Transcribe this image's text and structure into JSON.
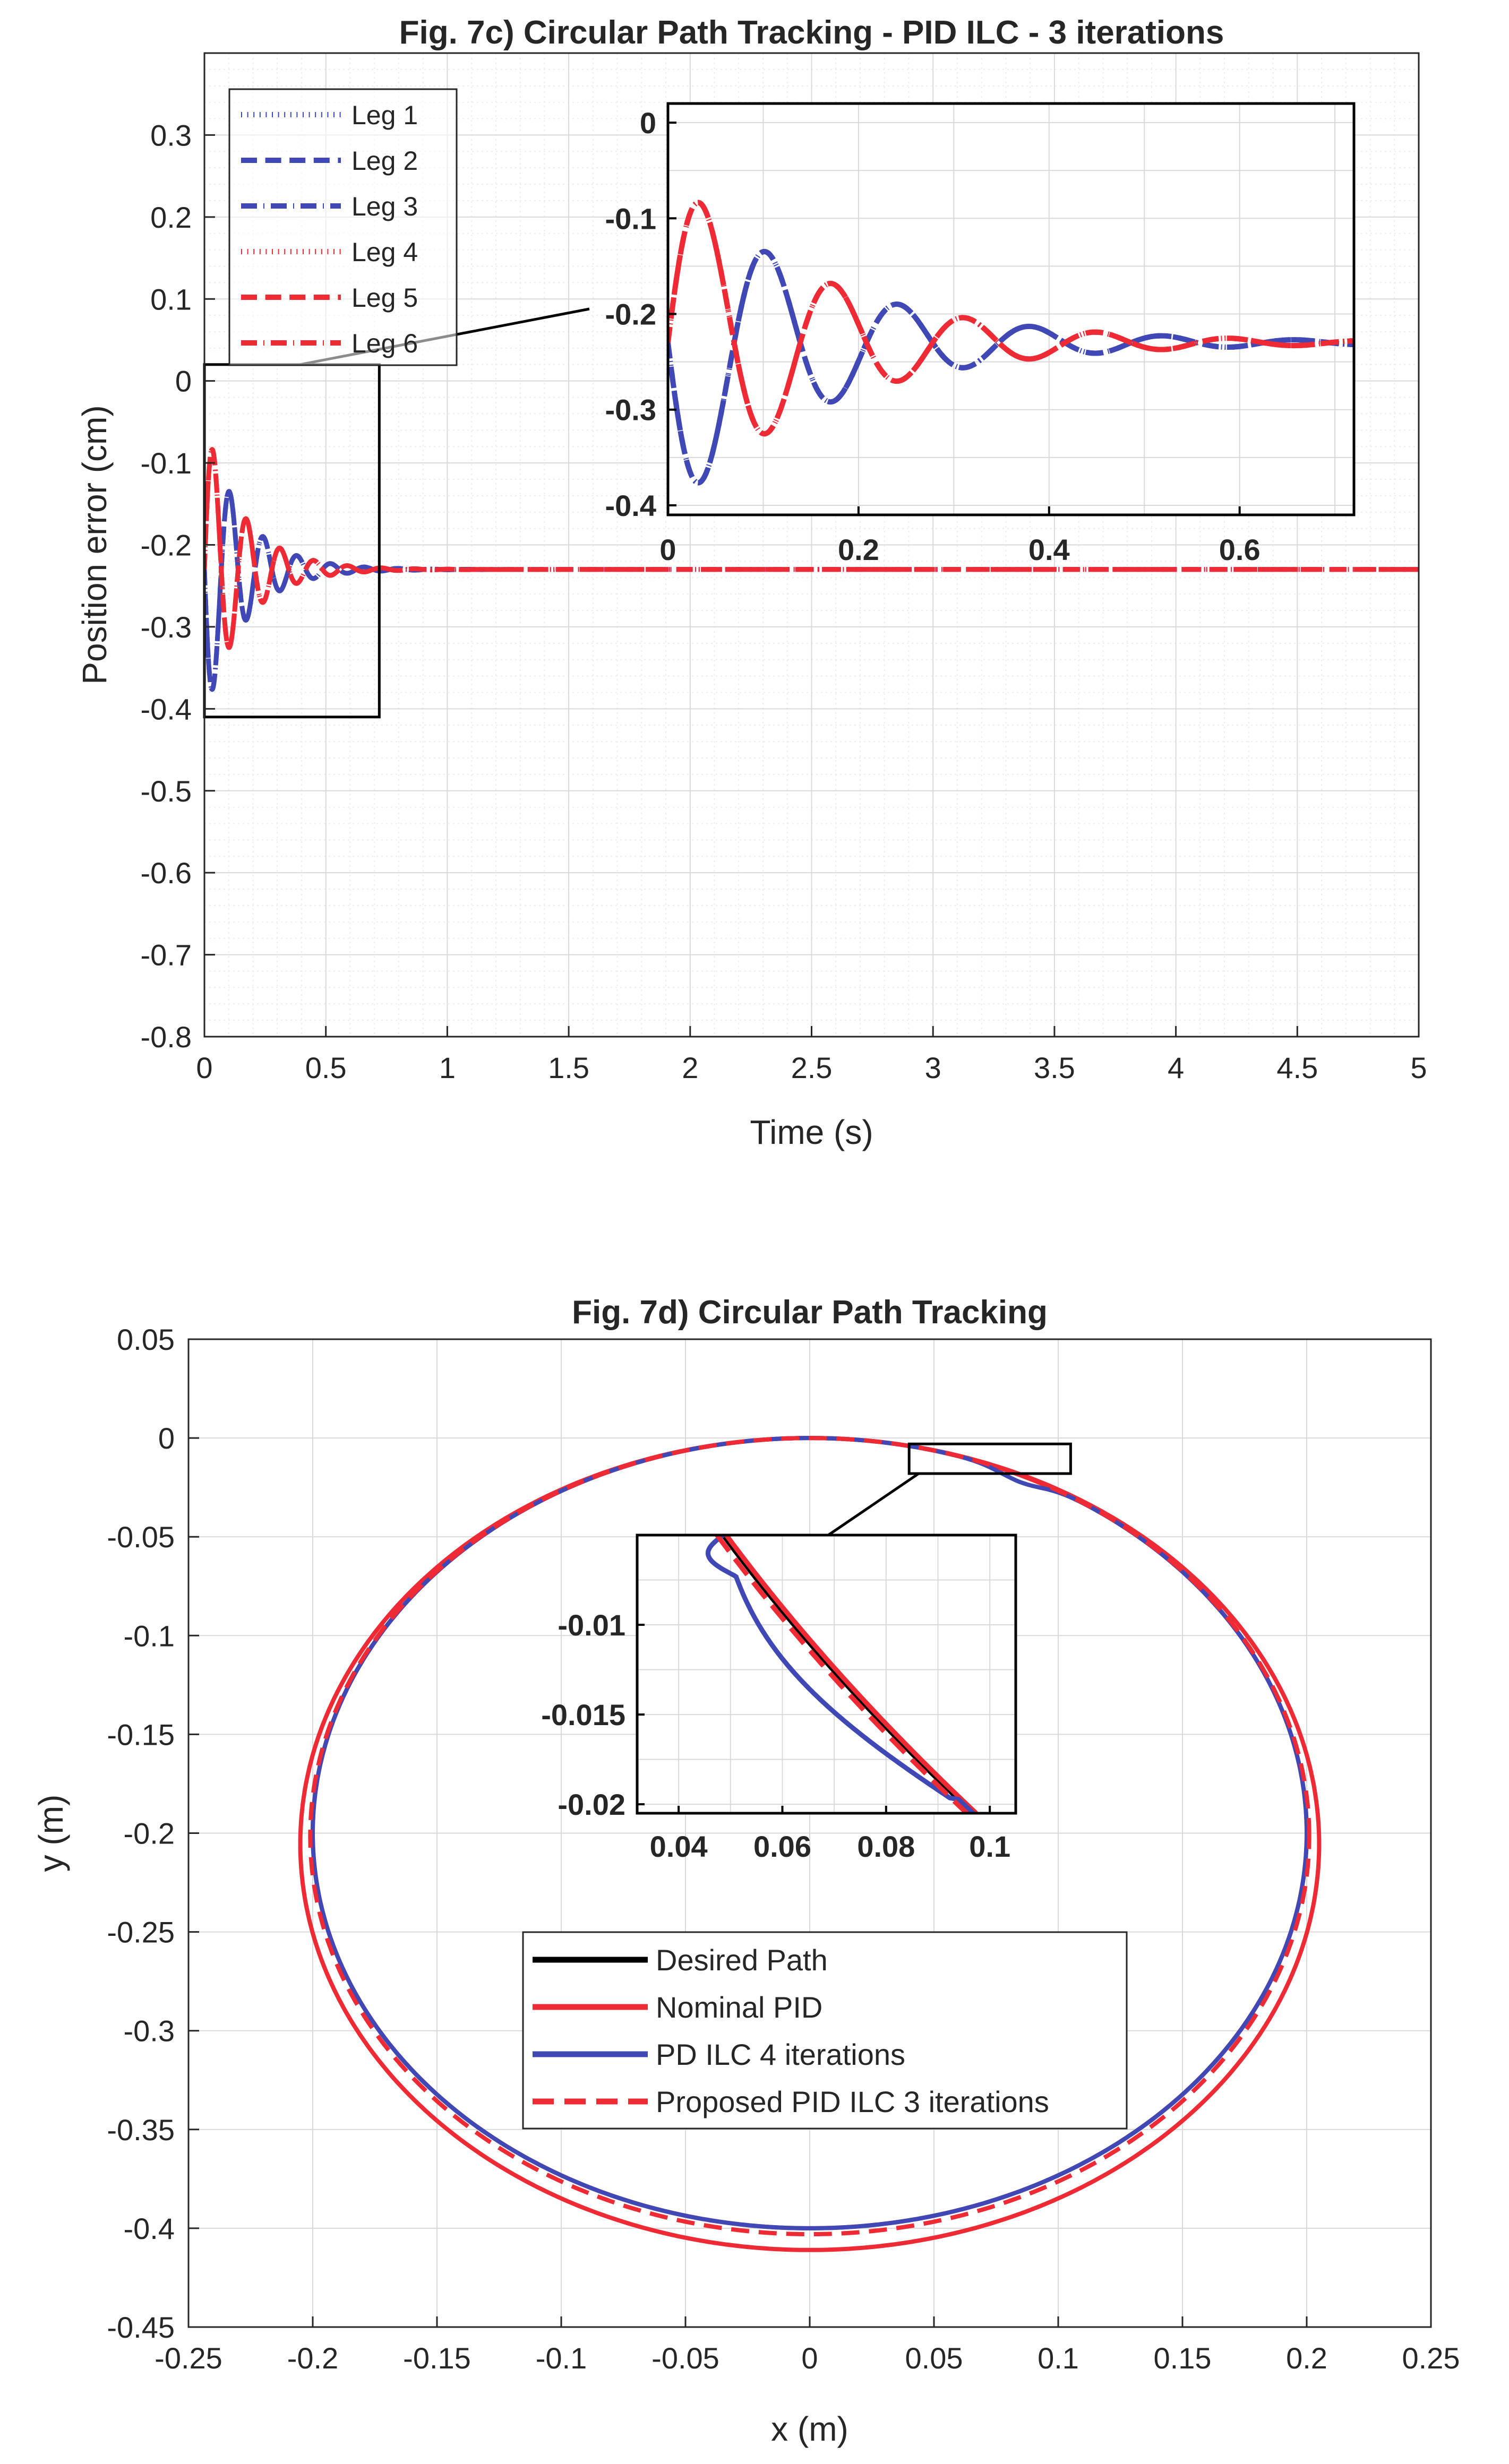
{
  "colors": {
    "blue": "#3F48B5",
    "red": "#EE2A35",
    "black": "#000000",
    "grid_major": "#d9d9d9",
    "grid_minor": "#ececec"
  },
  "chart_data": [
    {
      "type": "line",
      "title": "Fig. 7c) Circular Path Tracking - PID ILC - 3 iterations",
      "xlabel": "Time (s)",
      "ylabel": "Position error (cm)",
      "xlim": [
        0,
        5
      ],
      "ylim": [
        -0.8,
        0.4
      ],
      "xticks": [
        "0",
        "0.5",
        "1",
        "1.5",
        "2",
        "2.5",
        "3",
        "3.5",
        "4",
        "4.5",
        "5"
      ],
      "yticks": [
        "0.3",
        "0.2",
        "0.1",
        "0",
        "-0.1",
        "-0.2",
        "-0.3",
        "-0.4",
        "-0.5",
        "-0.6",
        "-0.7",
        "-0.8"
      ],
      "grid": "on (major and minor)",
      "legend_position": "top-left",
      "steady_state_error": -0.23,
      "series": [
        {
          "name": "Leg 1",
          "color": "blue",
          "style": "dotted",
          "model": {
            "amplitude": 0.18,
            "frequency_hz": 7.2,
            "decay_rate": 6.2,
            "offset": -0.23,
            "phase_deg": 90
          }
        },
        {
          "name": "Leg 2",
          "color": "blue",
          "style": "dashed",
          "model": {
            "amplitude": 0.18,
            "frequency_hz": 7.2,
            "decay_rate": 6.2,
            "offset": -0.23,
            "phase_deg": 90
          }
        },
        {
          "name": "Leg 3",
          "color": "blue",
          "style": "dash-dot",
          "model": {
            "amplitude": 0.18,
            "frequency_hz": 7.2,
            "decay_rate": 6.2,
            "offset": -0.23,
            "phase_deg": 90
          }
        },
        {
          "name": "Leg 4",
          "color": "red",
          "style": "dotted",
          "model": {
            "amplitude": 0.18,
            "frequency_hz": 7.2,
            "decay_rate": 6.2,
            "offset": -0.23,
            "phase_deg": -90
          }
        },
        {
          "name": "Leg 5",
          "color": "red",
          "style": "dashed",
          "model": {
            "amplitude": 0.18,
            "frequency_hz": 7.2,
            "decay_rate": 6.2,
            "offset": -0.23,
            "phase_deg": -90
          }
        },
        {
          "name": "Leg 6",
          "color": "red",
          "style": "dash-dot",
          "model": {
            "amplitude": 0.18,
            "frequency_hz": 7.2,
            "decay_rate": 6.2,
            "offset": -0.23,
            "phase_deg": -90
          }
        }
      ],
      "inset": {
        "xlim": [
          0,
          0.72
        ],
        "ylim": [
          -0.41,
          0.02
        ],
        "xticks": [
          "0",
          "0.2",
          "0.4",
          "0.6"
        ],
        "yticks": [
          "0",
          "-0.1",
          "-0.2",
          "-0.3",
          "-0.4"
        ],
        "zoom_region": {
          "x": [
            0,
            0.72
          ],
          "y": [
            -0.41,
            0.02
          ]
        }
      }
    },
    {
      "type": "line",
      "title": "Fig. 7d) Circular Path Tracking",
      "xlabel": "x (m)",
      "ylabel": "y (m)",
      "xlim": [
        -0.25,
        0.25
      ],
      "ylim": [
        -0.45,
        0.05
      ],
      "xticks": [
        "-0.25",
        "-0.2",
        "-0.15",
        "-0.1",
        "-0.05",
        "0",
        "0.05",
        "0.1",
        "0.15",
        "0.2",
        "0.25"
      ],
      "yticks": [
        "0.05",
        "0",
        "-0.05",
        "-0.1",
        "-0.15",
        "-0.2",
        "-0.25",
        "-0.3",
        "-0.35",
        "-0.4",
        "-0.45"
      ],
      "grid": "on",
      "legend_position": "center",
      "series": [
        {
          "name": "Desired Path",
          "color": "black",
          "style": "solid",
          "ellipse": {
            "cx": 0,
            "cy": -0.2,
            "rx": 0.2,
            "ry": 0.2
          }
        },
        {
          "name": "Nominal PID",
          "color": "red",
          "style": "solid",
          "ellipses": [
            {
              "cx": 0,
              "cy": -0.2,
              "rx": 0.2,
              "ry": 0.2
            },
            {
              "cx": 0,
              "cy": -0.2055,
              "rx": 0.205,
              "ry": 0.2055
            }
          ]
        },
        {
          "name": "PD ILC 4 iterations",
          "color": "blue",
          "style": "solid",
          "ellipse": {
            "cx": 0,
            "cy": -0.2,
            "rx": 0.2,
            "ry": 0.2
          }
        },
        {
          "name": "Proposed PID ILC 3 iterations",
          "color": "red",
          "style": "dashed",
          "ellipse": {
            "cx": 0,
            "cy": -0.2015,
            "rx": 0.201,
            "ry": 0.2015
          }
        }
      ],
      "inset": {
        "xlim": [
          0.032,
          0.105
        ],
        "ylim": [
          -0.0205,
          -0.005
        ],
        "xticks": [
          "0.04",
          "0.06",
          "0.08",
          "0.1"
        ],
        "yticks": [
          "-0.01",
          "-0.015",
          "-0.02"
        ],
        "zoom_region": {
          "x": [
            0.04,
            0.105
          ],
          "y": [
            -0.018,
            -0.003
          ]
        }
      }
    }
  ]
}
